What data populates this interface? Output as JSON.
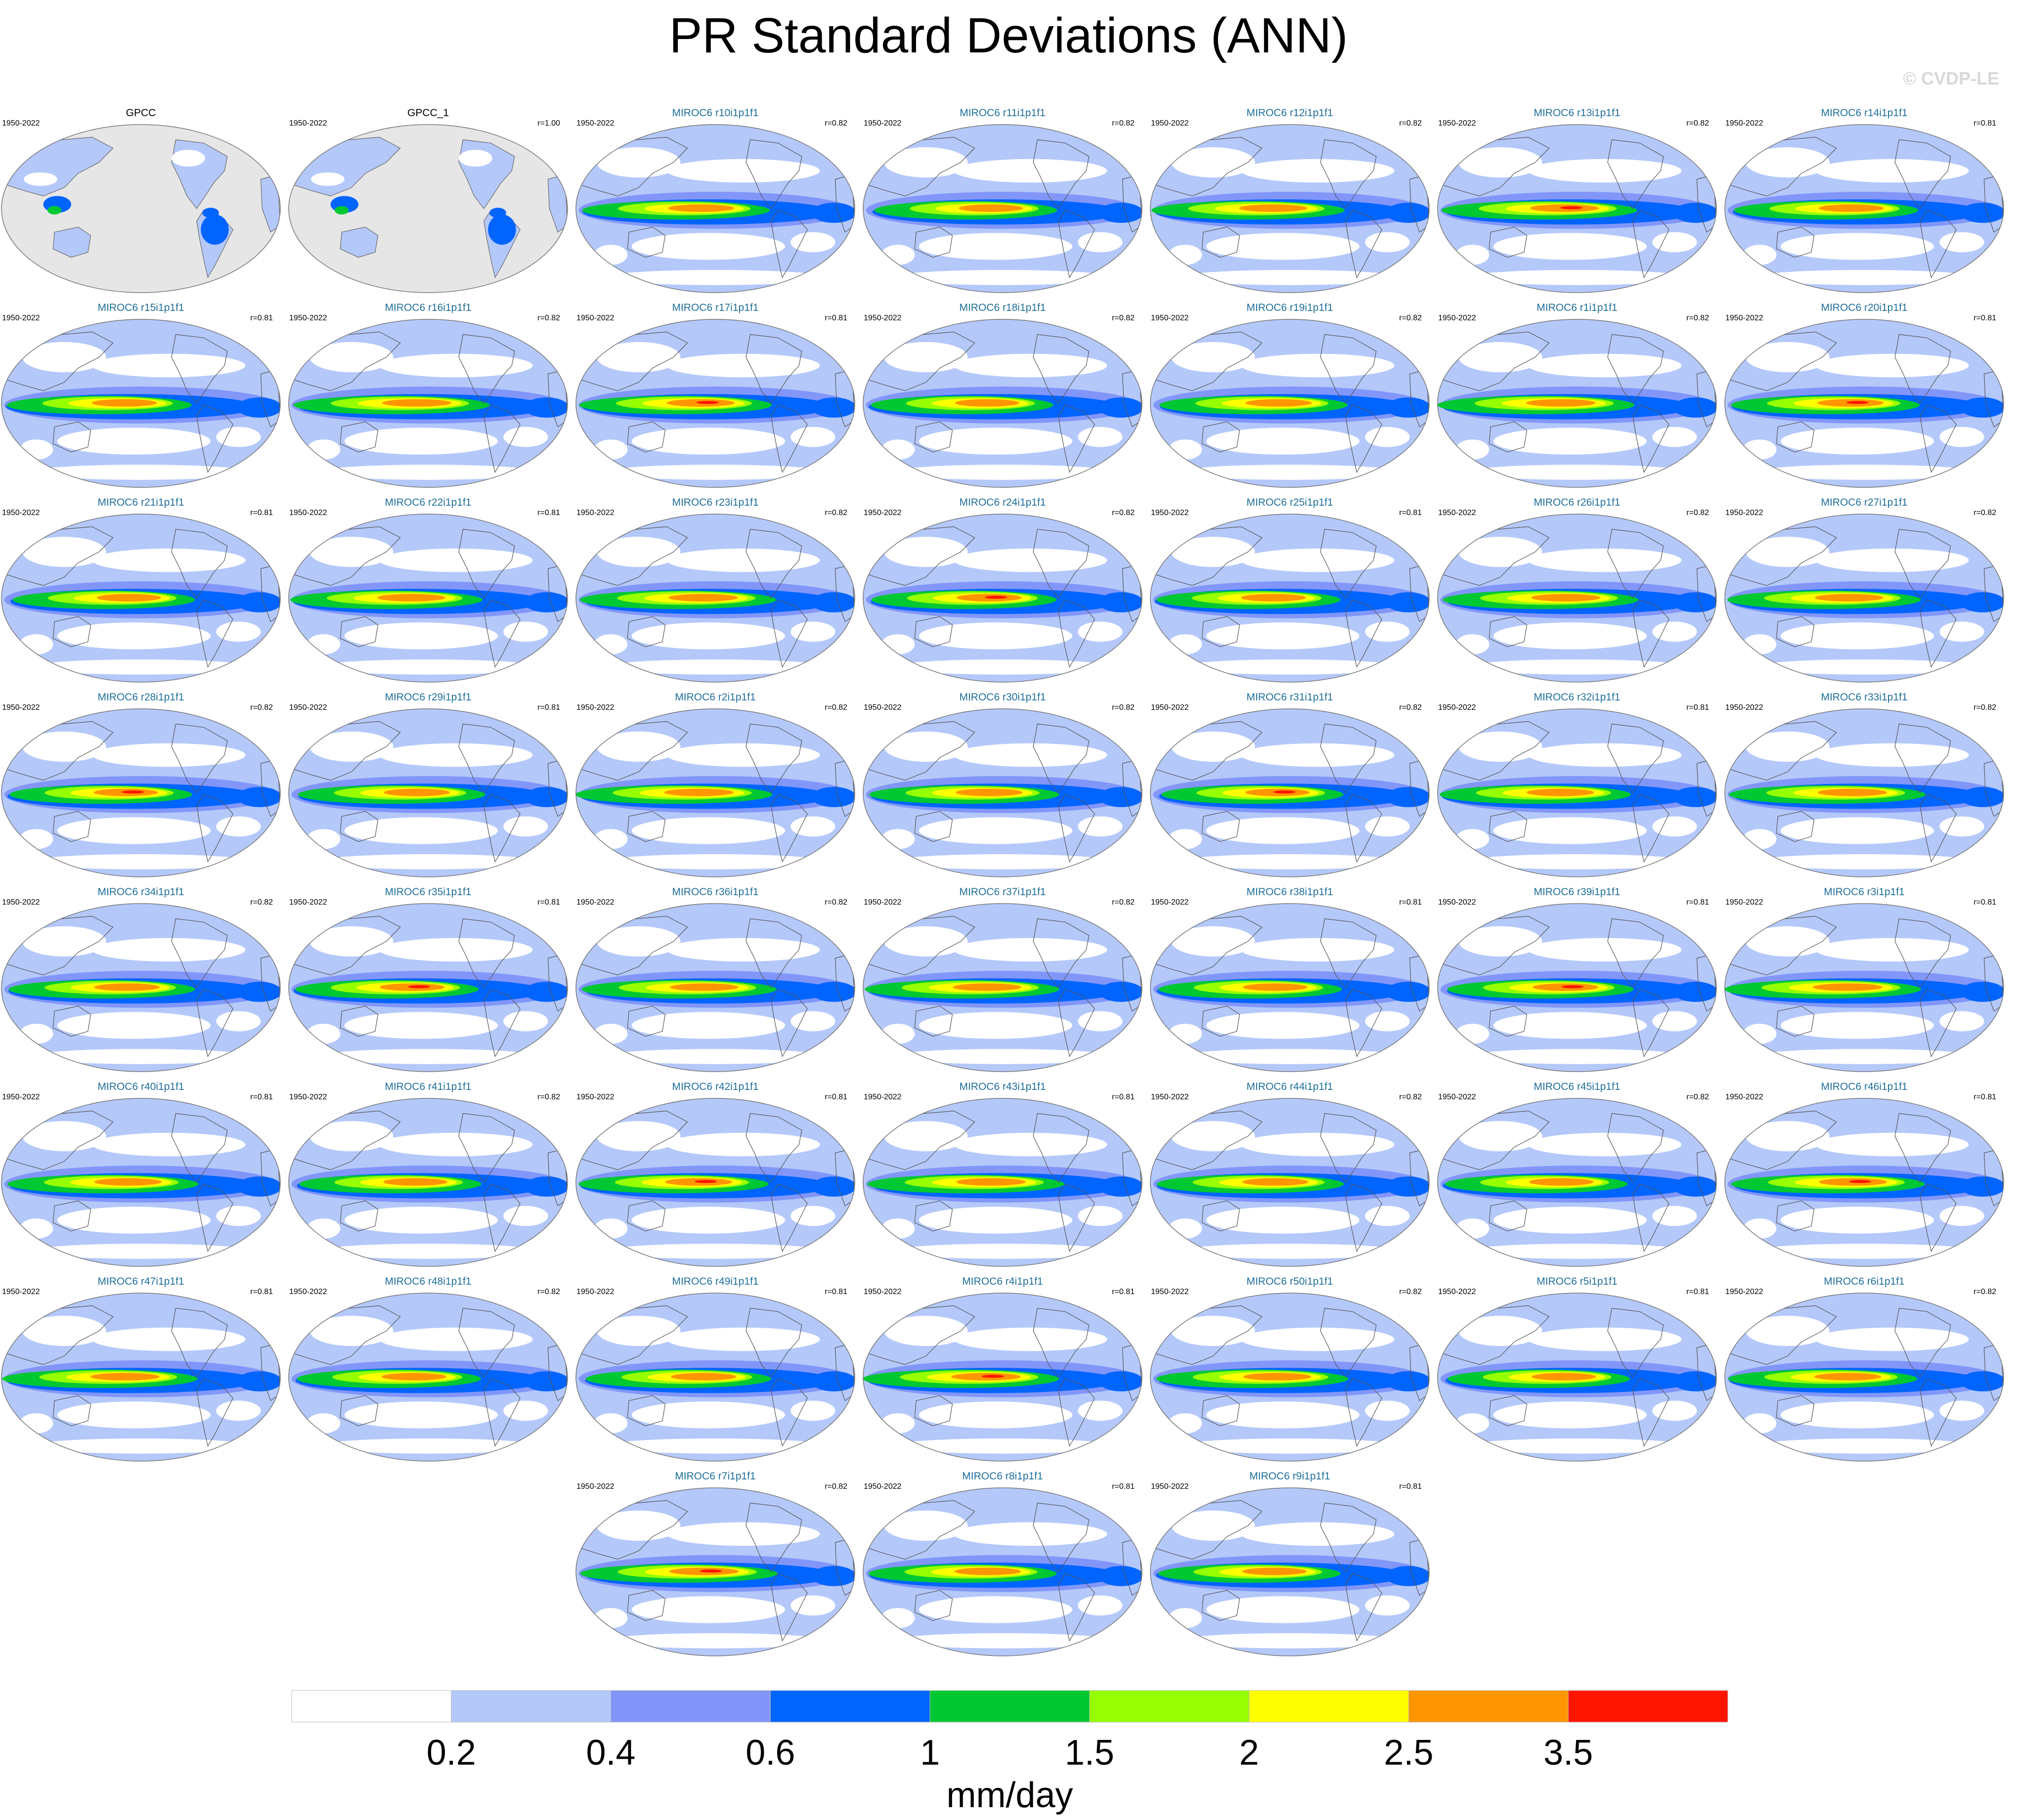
{
  "title": "PR Standard Deviations (ANN)",
  "watermark": "© CVDP-LE",
  "colorbar": {
    "unit_label": "mm/day",
    "tick_labels": [
      "0.2",
      "0.4",
      "0.6",
      "1",
      "1.5",
      "2",
      "2.5",
      "3.5"
    ],
    "colors": [
      "#ffffff",
      "#b4c8fa",
      "#8296fa",
      "#0064ff",
      "#00c832",
      "#96ff00",
      "#ffff00",
      "#ff9600",
      "#ff1400"
    ]
  },
  "panels": [
    {
      "name": "GPCC",
      "years": "1950-2022",
      "r": "",
      "kind": "obs"
    },
    {
      "name": "GPCC_1",
      "years": "1950-2022",
      "r": "r=1.00",
      "kind": "obs"
    },
    {
      "name": "MIROC6 r10i1p1f1",
      "years": "1950-2022",
      "r": "r=0.82",
      "kind": "model"
    },
    {
      "name": "MIROC6 r11i1p1f1",
      "years": "1950-2022",
      "r": "r=0.82",
      "kind": "model"
    },
    {
      "name": "MIROC6 r12i1p1f1",
      "years": "1950-2022",
      "r": "r=0.82",
      "kind": "model"
    },
    {
      "name": "MIROC6 r13i1p1f1",
      "years": "1950-2022",
      "r": "r=0.82",
      "kind": "model"
    },
    {
      "name": "MIROC6 r14i1p1f1",
      "years": "1950-2022",
      "r": "r=0.81",
      "kind": "model"
    },
    {
      "name": "MIROC6 r15i1p1f1",
      "years": "1950-2022",
      "r": "r=0.81",
      "kind": "model"
    },
    {
      "name": "MIROC6 r16i1p1f1",
      "years": "1950-2022",
      "r": "r=0.82",
      "kind": "model"
    },
    {
      "name": "MIROC6 r17i1p1f1",
      "years": "1950-2022",
      "r": "r=0.81",
      "kind": "model"
    },
    {
      "name": "MIROC6 r18i1p1f1",
      "years": "1950-2022",
      "r": "r=0.82",
      "kind": "model"
    },
    {
      "name": "MIROC6 r19i1p1f1",
      "years": "1950-2022",
      "r": "r=0.82",
      "kind": "model"
    },
    {
      "name": "MIROC6 r1i1p1f1",
      "years": "1950-2022",
      "r": "r=0.82",
      "kind": "model"
    },
    {
      "name": "MIROC6 r20i1p1f1",
      "years": "1950-2022",
      "r": "r=0.81",
      "kind": "model"
    },
    {
      "name": "MIROC6 r21i1p1f1",
      "years": "1950-2022",
      "r": "r=0.81",
      "kind": "model"
    },
    {
      "name": "MIROC6 r22i1p1f1",
      "years": "1950-2022",
      "r": "r=0.81",
      "kind": "model"
    },
    {
      "name": "MIROC6 r23i1p1f1",
      "years": "1950-2022",
      "r": "r=0.82",
      "kind": "model"
    },
    {
      "name": "MIROC6 r24i1p1f1",
      "years": "1950-2022",
      "r": "r=0.82",
      "kind": "model"
    },
    {
      "name": "MIROC6 r25i1p1f1",
      "years": "1950-2022",
      "r": "r=0.81",
      "kind": "model"
    },
    {
      "name": "MIROC6 r26i1p1f1",
      "years": "1950-2022",
      "r": "r=0.82",
      "kind": "model"
    },
    {
      "name": "MIROC6 r27i1p1f1",
      "years": "1950-2022",
      "r": "r=0.82",
      "kind": "model"
    },
    {
      "name": "MIROC6 r28i1p1f1",
      "years": "1950-2022",
      "r": "r=0.82",
      "kind": "model"
    },
    {
      "name": "MIROC6 r29i1p1f1",
      "years": "1950-2022",
      "r": "r=0.81",
      "kind": "model"
    },
    {
      "name": "MIROC6 r2i1p1f1",
      "years": "1950-2022",
      "r": "r=0.82",
      "kind": "model"
    },
    {
      "name": "MIROC6 r30i1p1f1",
      "years": "1950-2022",
      "r": "r=0.82",
      "kind": "model"
    },
    {
      "name": "MIROC6 r31i1p1f1",
      "years": "1950-2022",
      "r": "r=0.82",
      "kind": "model"
    },
    {
      "name": "MIROC6 r32i1p1f1",
      "years": "1950-2022",
      "r": "r=0.81",
      "kind": "model"
    },
    {
      "name": "MIROC6 r33i1p1f1",
      "years": "1950-2022",
      "r": "r=0.82",
      "kind": "model"
    },
    {
      "name": "MIROC6 r34i1p1f1",
      "years": "1950-2022",
      "r": "r=0.82",
      "kind": "model"
    },
    {
      "name": "MIROC6 r35i1p1f1",
      "years": "1950-2022",
      "r": "r=0.81",
      "kind": "model"
    },
    {
      "name": "MIROC6 r36i1p1f1",
      "years": "1950-2022",
      "r": "r=0.82",
      "kind": "model"
    },
    {
      "name": "MIROC6 r37i1p1f1",
      "years": "1950-2022",
      "r": "r=0.82",
      "kind": "model"
    },
    {
      "name": "MIROC6 r38i1p1f1",
      "years": "1950-2022",
      "r": "r=0.81",
      "kind": "model"
    },
    {
      "name": "MIROC6 r39i1p1f1",
      "years": "1950-2022",
      "r": "r=0.81",
      "kind": "model"
    },
    {
      "name": "MIROC6 r3i1p1f1",
      "years": "1950-2022",
      "r": "r=0.81",
      "kind": "model"
    },
    {
      "name": "MIROC6 r40i1p1f1",
      "years": "1950-2022",
      "r": "r=0.81",
      "kind": "model"
    },
    {
      "name": "MIROC6 r41i1p1f1",
      "years": "1950-2022",
      "r": "r=0.82",
      "kind": "model"
    },
    {
      "name": "MIROC6 r42i1p1f1",
      "years": "1950-2022",
      "r": "r=0.81",
      "kind": "model"
    },
    {
      "name": "MIROC6 r43i1p1f1",
      "years": "1950-2022",
      "r": "r=0.81",
      "kind": "model"
    },
    {
      "name": "MIROC6 r44i1p1f1",
      "years": "1950-2022",
      "r": "r=0.82",
      "kind": "model"
    },
    {
      "name": "MIROC6 r45i1p1f1",
      "years": "1950-2022",
      "r": "r=0.82",
      "kind": "model"
    },
    {
      "name": "MIROC6 r46i1p1f1",
      "years": "1950-2022",
      "r": "r=0.81",
      "kind": "model"
    },
    {
      "name": "MIROC6 r47i1p1f1",
      "years": "1950-2022",
      "r": "r=0.81",
      "kind": "model"
    },
    {
      "name": "MIROC6 r48i1p1f1",
      "years": "1950-2022",
      "r": "r=0.82",
      "kind": "model"
    },
    {
      "name": "MIROC6 r49i1p1f1",
      "years": "1950-2022",
      "r": "r=0.81",
      "kind": "model"
    },
    {
      "name": "MIROC6 r4i1p1f1",
      "years": "1950-2022",
      "r": "r=0.81",
      "kind": "model"
    },
    {
      "name": "MIROC6 r50i1p1f1",
      "years": "1950-2022",
      "r": "r=0.82",
      "kind": "model"
    },
    {
      "name": "MIROC6 r5i1p1f1",
      "years": "1950-2022",
      "r": "r=0.81",
      "kind": "model"
    },
    {
      "name": "MIROC6 r6i1p1f1",
      "years": "1950-2022",
      "r": "r=0.82",
      "kind": "model"
    },
    {
      "name": "MIROC6 r7i1p1f1",
      "years": "1950-2022",
      "r": "r=0.82",
      "kind": "model"
    },
    {
      "name": "MIROC6 r8i1p1f1",
      "years": "1950-2022",
      "r": "r=0.81",
      "kind": "model"
    },
    {
      "name": "MIROC6 r9i1p1f1",
      "years": "1950-2022",
      "r": "r=0.81",
      "kind": "model"
    }
  ]
}
